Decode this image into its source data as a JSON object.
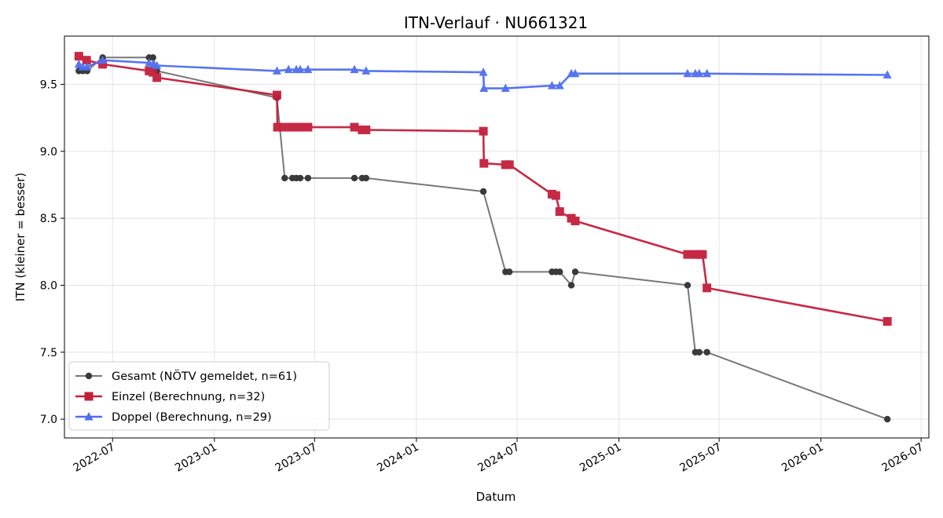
{
  "chart_data": {
    "type": "line",
    "title": "ITN-Verlauf · NU661321",
    "xlabel": "Datum",
    "ylabel": "ITN  (kleiner = besser)",
    "x_ticks": [
      "2022-07",
      "2023-01",
      "2023-07",
      "2024-01",
      "2024-07",
      "2025-01",
      "2025-07",
      "2026-01",
      "2026-07"
    ],
    "xlim": [
      "2022-04-05",
      "2026-07-15"
    ],
    "y_ticks": [
      "7.0",
      "7.5",
      "8.0",
      "8.5",
      "9.0",
      "9.5"
    ],
    "ylim": [
      6.86,
      9.86
    ],
    "grid": true,
    "legend_position": "lower-left",
    "colors": {
      "gesamt": "#777777",
      "einzel": "#c41e3a",
      "doppel": "#4f6ef0",
      "gesamt_marker": "#3a3a3a"
    },
    "series": [
      {
        "key": "gesamt",
        "name": "Gesamt (NÖTV gemeldet, n=61)",
        "marker": "circle",
        "points": [
          [
            "2022-05-01",
            9.6
          ],
          [
            "2022-05-08",
            9.6
          ],
          [
            "2022-05-16",
            9.6
          ],
          [
            "2022-06-13",
            9.7
          ],
          [
            "2022-09-05",
            9.7
          ],
          [
            "2022-09-12",
            9.7
          ],
          [
            "2022-09-19",
            9.6
          ],
          [
            "2023-04-24",
            9.4
          ],
          [
            "2023-05-08",
            8.8
          ],
          [
            "2023-05-22",
            8.8
          ],
          [
            "2023-05-29",
            8.8
          ],
          [
            "2023-06-05",
            8.8
          ],
          [
            "2023-06-19",
            8.8
          ],
          [
            "2023-09-11",
            8.8
          ],
          [
            "2023-09-25",
            8.8
          ],
          [
            "2023-10-02",
            8.8
          ],
          [
            "2024-05-01",
            8.7
          ],
          [
            "2024-06-10",
            8.1
          ],
          [
            "2024-06-17",
            8.1
          ],
          [
            "2024-09-02",
            8.1
          ],
          [
            "2024-09-09",
            8.1
          ],
          [
            "2024-09-16",
            8.1
          ],
          [
            "2024-10-07",
            8.0
          ],
          [
            "2024-10-14",
            8.1
          ],
          [
            "2025-05-05",
            8.0
          ],
          [
            "2025-05-19",
            7.5
          ],
          [
            "2025-05-26",
            7.5
          ],
          [
            "2025-06-09",
            7.5
          ],
          [
            "2026-05-01",
            7.0
          ]
        ]
      },
      {
        "key": "einzel",
        "name": "Einzel (Berechnung, n=32)",
        "marker": "square",
        "points": [
          [
            "2022-05-01",
            9.71
          ],
          [
            "2022-05-15",
            9.68
          ],
          [
            "2022-06-13",
            9.65
          ],
          [
            "2022-09-05",
            9.6
          ],
          [
            "2022-09-12",
            9.59
          ],
          [
            "2022-09-19",
            9.55
          ],
          [
            "2023-04-24",
            9.42
          ],
          [
            "2023-04-25",
            9.18
          ],
          [
            "2023-05-08",
            9.18
          ],
          [
            "2023-05-22",
            9.18
          ],
          [
            "2023-05-29",
            9.18
          ],
          [
            "2023-06-05",
            9.18
          ],
          [
            "2023-06-19",
            9.18
          ],
          [
            "2023-09-11",
            9.18
          ],
          [
            "2023-09-25",
            9.16
          ],
          [
            "2023-10-02",
            9.16
          ],
          [
            "2024-05-01",
            9.15
          ],
          [
            "2024-05-02",
            8.91
          ],
          [
            "2024-06-10",
            8.9
          ],
          [
            "2024-06-17",
            8.9
          ],
          [
            "2024-09-02",
            8.68
          ],
          [
            "2024-09-09",
            8.67
          ],
          [
            "2024-09-16",
            8.55
          ],
          [
            "2024-10-07",
            8.5
          ],
          [
            "2024-10-14",
            8.48
          ],
          [
            "2025-05-05",
            8.23
          ],
          [
            "2025-05-19",
            8.23
          ],
          [
            "2025-05-26",
            8.23
          ],
          [
            "2025-06-01",
            8.23
          ],
          [
            "2025-06-09",
            7.98
          ],
          [
            "2026-05-01",
            7.73
          ]
        ]
      },
      {
        "key": "doppel",
        "name": "Doppel (Berechnung, n=29)",
        "marker": "triangle",
        "points": [
          [
            "2022-05-01",
            9.65
          ],
          [
            "2022-05-08",
            9.63
          ],
          [
            "2022-05-16",
            9.63
          ],
          [
            "2022-06-13",
            9.68
          ],
          [
            "2022-09-05",
            9.66
          ],
          [
            "2022-09-12",
            9.65
          ],
          [
            "2022-09-19",
            9.64
          ],
          [
            "2023-04-24",
            9.6
          ],
          [
            "2023-05-15",
            9.61
          ],
          [
            "2023-05-29",
            9.61
          ],
          [
            "2023-06-05",
            9.61
          ],
          [
            "2023-06-19",
            9.61
          ],
          [
            "2023-09-11",
            9.61
          ],
          [
            "2023-10-02",
            9.6
          ],
          [
            "2024-05-01",
            9.59
          ],
          [
            "2024-05-02",
            9.47
          ],
          [
            "2024-06-10",
            9.47
          ],
          [
            "2024-09-02",
            9.49
          ],
          [
            "2024-09-16",
            9.49
          ],
          [
            "2024-10-07",
            9.58
          ],
          [
            "2024-10-14",
            9.58
          ],
          [
            "2025-05-05",
            9.58
          ],
          [
            "2025-05-19",
            9.58
          ],
          [
            "2025-05-26",
            9.58
          ],
          [
            "2025-06-09",
            9.58
          ],
          [
            "2026-05-01",
            9.57
          ]
        ]
      }
    ]
  }
}
